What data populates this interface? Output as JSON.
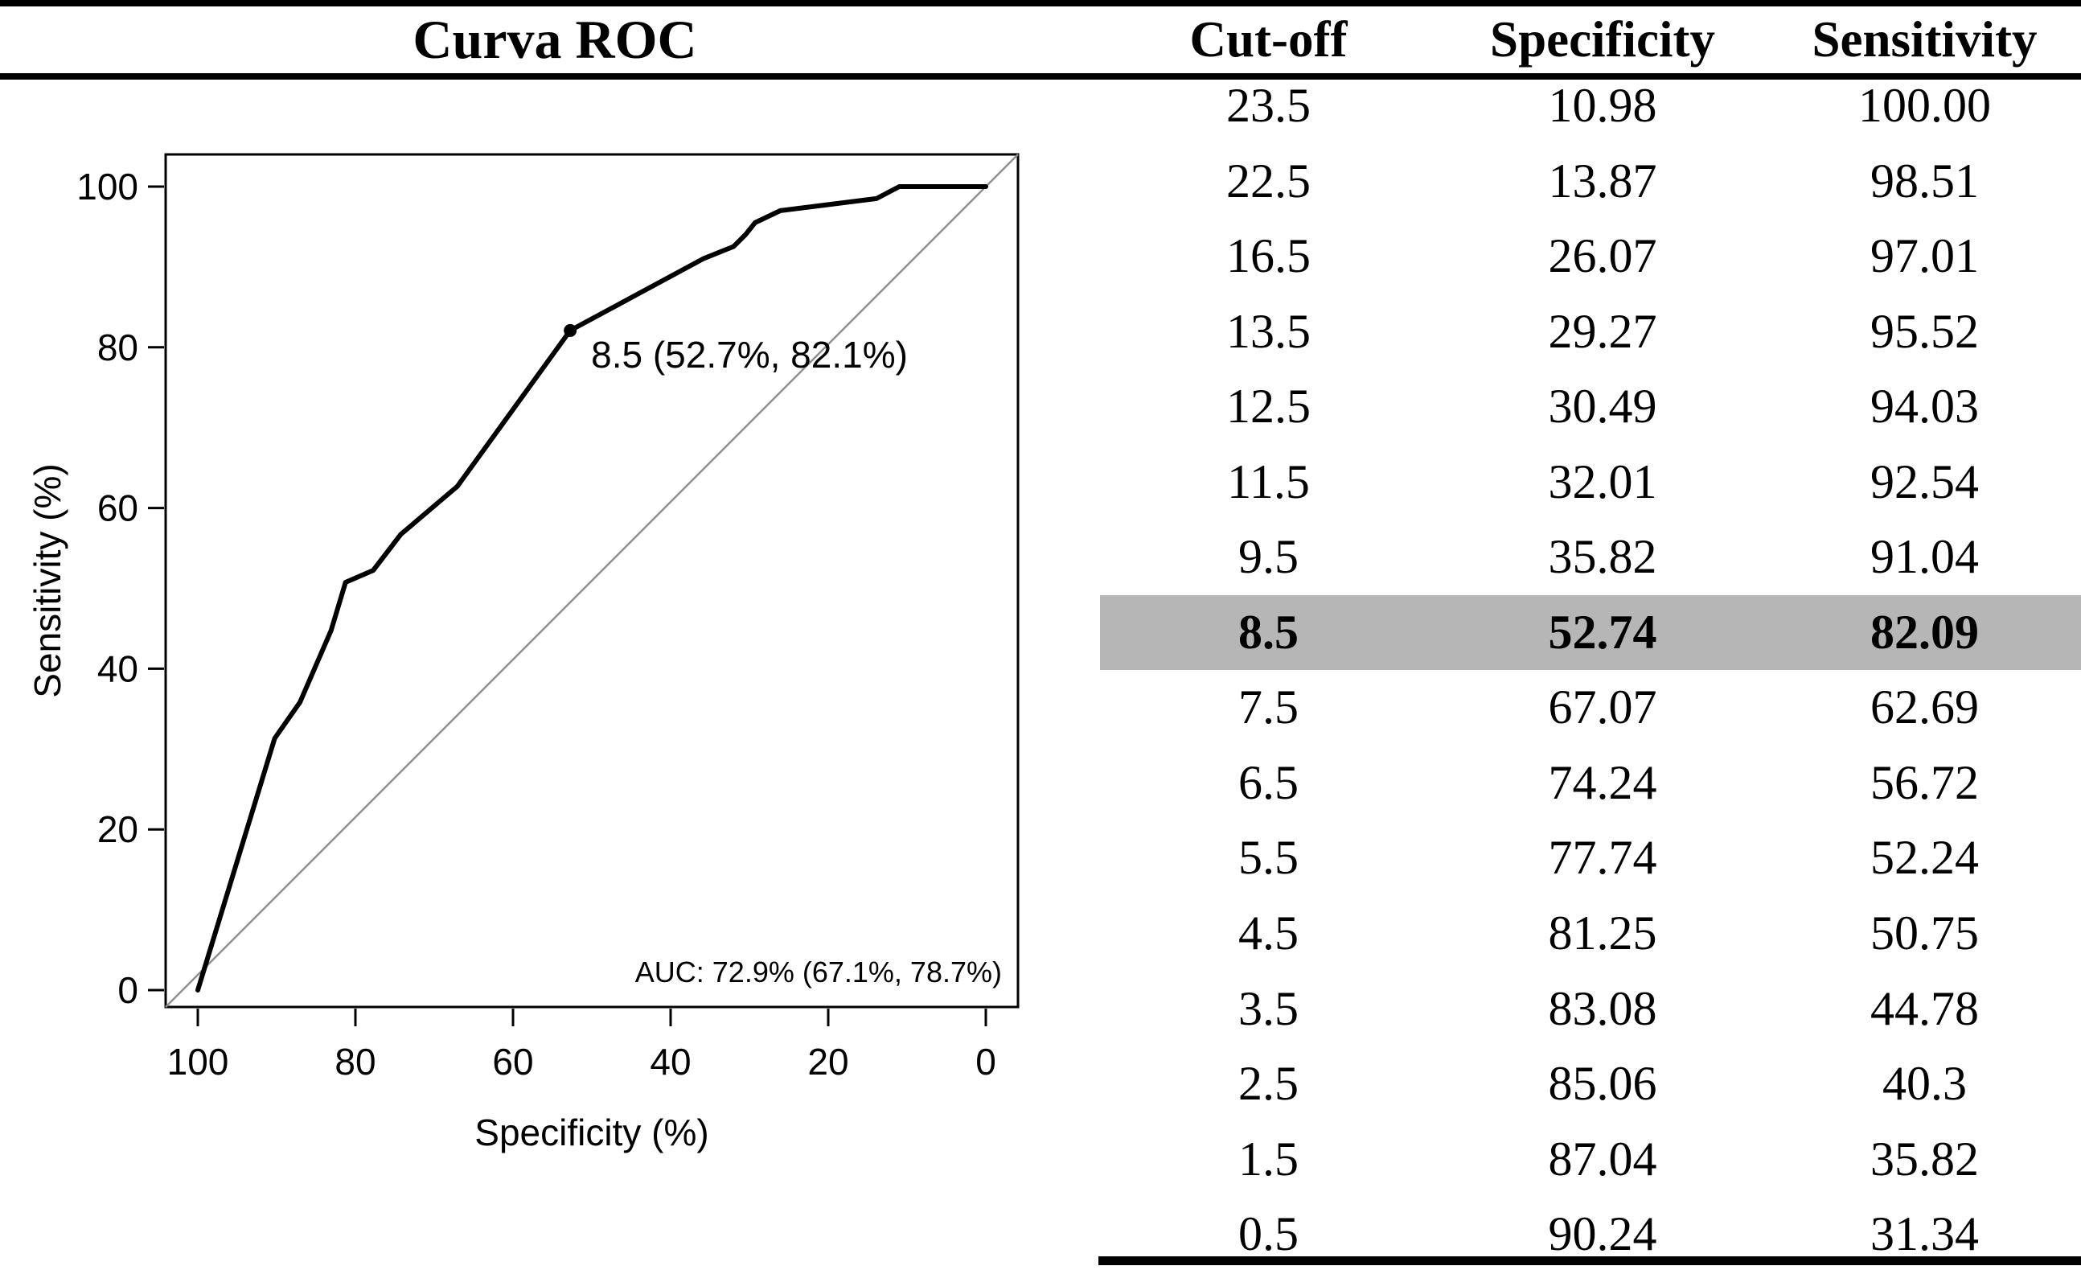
{
  "header": {
    "figure_title": "Curva ROC"
  },
  "table": {
    "columns": [
      "Cut-off",
      "Specificity",
      "Sensitivity"
    ],
    "highlight_row_bg": "#b6b6b6",
    "rows": [
      {
        "cutoff": "23.5",
        "specificity": "10.98",
        "sensitivity": "100.00",
        "highlight": false
      },
      {
        "cutoff": "22.5",
        "specificity": "13.87",
        "sensitivity": "98.51",
        "highlight": false
      },
      {
        "cutoff": "16.5",
        "specificity": "26.07",
        "sensitivity": "97.01",
        "highlight": false
      },
      {
        "cutoff": "13.5",
        "specificity": "29.27",
        "sensitivity": "95.52",
        "highlight": false
      },
      {
        "cutoff": "12.5",
        "specificity": "30.49",
        "sensitivity": "94.03",
        "highlight": false
      },
      {
        "cutoff": "11.5",
        "specificity": "32.01",
        "sensitivity": "92.54",
        "highlight": false
      },
      {
        "cutoff": "9.5",
        "specificity": "35.82",
        "sensitivity": "91.04",
        "highlight": false
      },
      {
        "cutoff": "8.5",
        "specificity": "52.74",
        "sensitivity": "82.09",
        "highlight": true
      },
      {
        "cutoff": "7.5",
        "specificity": "67.07",
        "sensitivity": "62.69",
        "highlight": false
      },
      {
        "cutoff": "6.5",
        "specificity": "74.24",
        "sensitivity": "56.72",
        "highlight": false
      },
      {
        "cutoff": "5.5",
        "specificity": "77.74",
        "sensitivity": "52.24",
        "highlight": false
      },
      {
        "cutoff": "4.5",
        "specificity": "81.25",
        "sensitivity": "50.75",
        "highlight": false
      },
      {
        "cutoff": "3.5",
        "specificity": "83.08",
        "sensitivity": "44.78",
        "highlight": false
      },
      {
        "cutoff": "2.5",
        "specificity": "85.06",
        "sensitivity": "40.3",
        "highlight": false
      },
      {
        "cutoff": "1.5",
        "specificity": "87.04",
        "sensitivity": "35.82",
        "highlight": false
      },
      {
        "cutoff": "0.5",
        "specificity": "90.24",
        "sensitivity": "31.34",
        "highlight": false
      }
    ]
  },
  "chart_data": {
    "type": "line",
    "title": "Curva ROC",
    "xlabel": "Specificity (%)",
    "ylabel": "Sensitivity (%)",
    "xlim": [
      100,
      0
    ],
    "ylim": [
      0,
      100
    ],
    "x_reversed": true,
    "grid": false,
    "x_ticks": [
      100,
      80,
      60,
      40,
      20,
      0
    ],
    "y_ticks": [
      0,
      20,
      40,
      60,
      80,
      100
    ],
    "roc_points": [
      {
        "specificity": 100,
        "sensitivity": 0
      },
      {
        "specificity": 90.24,
        "sensitivity": 31.34
      },
      {
        "specificity": 87.04,
        "sensitivity": 35.82
      },
      {
        "specificity": 85.06,
        "sensitivity": 40.3
      },
      {
        "specificity": 83.08,
        "sensitivity": 44.78
      },
      {
        "specificity": 81.25,
        "sensitivity": 50.75
      },
      {
        "specificity": 77.74,
        "sensitivity": 52.24
      },
      {
        "specificity": 74.24,
        "sensitivity": 56.72
      },
      {
        "specificity": 67.07,
        "sensitivity": 62.69
      },
      {
        "specificity": 52.74,
        "sensitivity": 82.09
      },
      {
        "specificity": 35.82,
        "sensitivity": 91.04
      },
      {
        "specificity": 32.01,
        "sensitivity": 92.54
      },
      {
        "specificity": 30.49,
        "sensitivity": 94.03
      },
      {
        "specificity": 29.27,
        "sensitivity": 95.52
      },
      {
        "specificity": 26.07,
        "sensitivity": 97.01
      },
      {
        "specificity": 13.87,
        "sensitivity": 98.51
      },
      {
        "specificity": 10.98,
        "sensitivity": 100
      },
      {
        "specificity": 0,
        "sensitivity": 100
      }
    ],
    "marked_point": {
      "cutoff": "8.5",
      "specificity": 52.74,
      "sensitivity": 82.09,
      "label": "8.5 (52.7%, 82.1%)"
    },
    "auc_label": "AUC: 72.9% (67.1%, 78.7%)",
    "diagonal_reference_line": true,
    "legend_position": "none",
    "colors": {
      "curve": "#000000",
      "diagonal": "#8f8f8f",
      "auc_text": "#555555",
      "highlight_row_bg": "#b6b6b6"
    }
  }
}
